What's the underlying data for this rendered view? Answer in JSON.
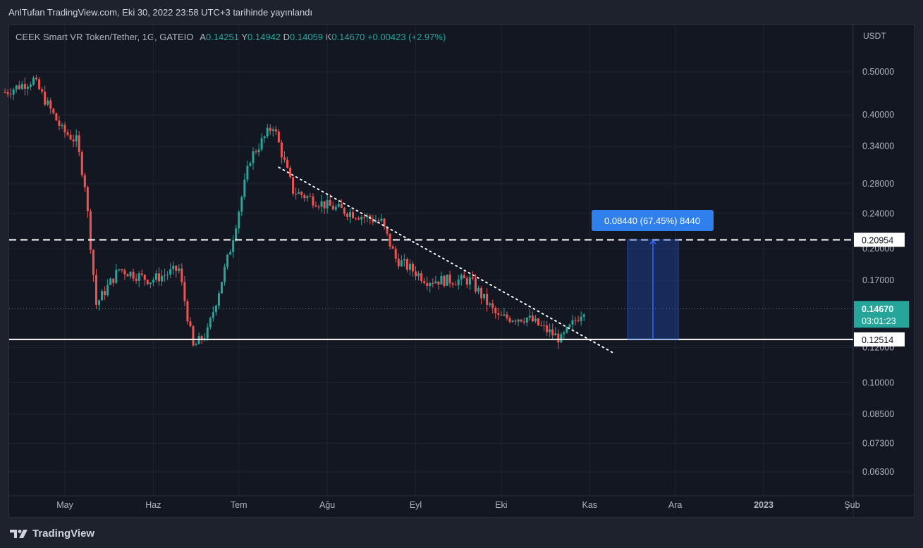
{
  "header": {
    "title": "AnlTufan TradingView.com, Eki 30, 2022 23:58 UTC+3 tarihinde yayınlandı"
  },
  "legend": {
    "symbol": "CEEK Smart VR Token/Tether, 1G, GATEIO",
    "open_label": "A",
    "open": "0.14251",
    "high_label": "Y",
    "high": "0.14942",
    "low_label": "D",
    "low": "0.14059",
    "close_label": "K",
    "close": "0.14670",
    "change": "+0.00423 (+2.97%)"
  },
  "colors": {
    "up": "#26a69a",
    "down": "#ef5350",
    "background": "#131722",
    "grid": "#1f2430",
    "measure": "#2962ff"
  },
  "chart_data": {
    "type": "candlestick",
    "y_axis": {
      "unit": "USDT",
      "scale": "log",
      "ticks": [
        "0.50000",
        "0.40000",
        "0.34000",
        "0.28000",
        "0.24000",
        "0.20000",
        "0.17000",
        "0.12000",
        "0.10000",
        "0.08500",
        "0.07300",
        "0.06300"
      ]
    },
    "x_axis": {
      "ticks": [
        "May",
        "Haz",
        "Tem",
        "Ağu",
        "Eyl",
        "Eki",
        "Kas",
        "Ara",
        "2023",
        "Şub"
      ]
    },
    "price_lines": [
      {
        "label": "0.20954",
        "value": 0.20954,
        "style": "dashed"
      },
      {
        "label": "0.12514",
        "value": 0.12514,
        "style": "solid"
      }
    ],
    "last_price": {
      "label": "0.14670",
      "value": 0.1467,
      "countdown": "03:01:23"
    },
    "trendline": {
      "from": {
        "date": "2022-07-15",
        "price": 0.305
      },
      "to": {
        "date": "2022-11-10",
        "price": 0.116
      },
      "style": "dotted"
    },
    "measure": {
      "label": "0.08440 (67.45%) 8440",
      "from_price": 0.12514,
      "to_price": 0.20954
    },
    "closes_approx": [
      {
        "date": "2022-04-10",
        "close": 0.45
      },
      {
        "date": "2022-04-20",
        "close": 0.48
      },
      {
        "date": "2022-04-30",
        "close": 0.37
      },
      {
        "date": "2022-05-05",
        "close": 0.35
      },
      {
        "date": "2022-05-08",
        "close": 0.28
      },
      {
        "date": "2022-05-12",
        "close": 0.15
      },
      {
        "date": "2022-05-20",
        "close": 0.18
      },
      {
        "date": "2022-05-31",
        "close": 0.17
      },
      {
        "date": "2022-06-10",
        "close": 0.18
      },
      {
        "date": "2022-06-15",
        "close": 0.12
      },
      {
        "date": "2022-06-20",
        "close": 0.13
      },
      {
        "date": "2022-06-28",
        "close": 0.2
      },
      {
        "date": "2022-07-05",
        "close": 0.32
      },
      {
        "date": "2022-07-13",
        "close": 0.38
      },
      {
        "date": "2022-07-20",
        "close": 0.27
      },
      {
        "date": "2022-08-01",
        "close": 0.25
      },
      {
        "date": "2022-08-20",
        "close": 0.23
      },
      {
        "date": "2022-08-25",
        "close": 0.19
      },
      {
        "date": "2022-09-05",
        "close": 0.17
      },
      {
        "date": "2022-09-20",
        "close": 0.17
      },
      {
        "date": "2022-09-30",
        "close": 0.14
      },
      {
        "date": "2022-10-10",
        "close": 0.14
      },
      {
        "date": "2022-10-22",
        "close": 0.125
      },
      {
        "date": "2022-10-30",
        "close": 0.1467
      }
    ]
  },
  "footer": {
    "brand": "TradingView"
  }
}
